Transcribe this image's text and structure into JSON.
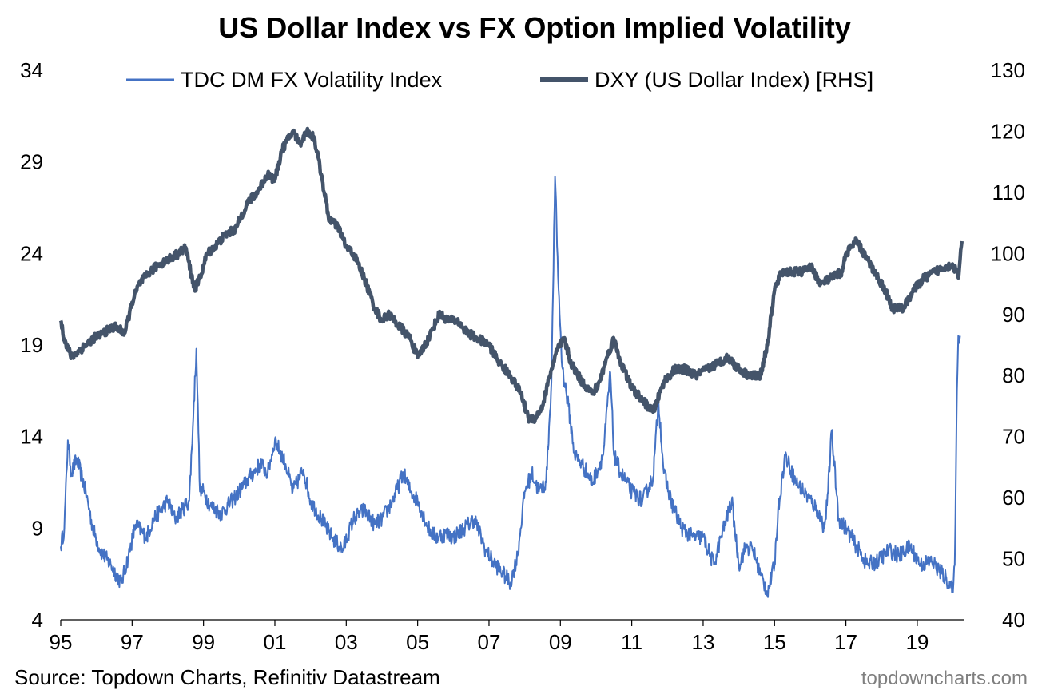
{
  "chart_data": {
    "type": "line",
    "title": "US Dollar Index vs FX Option Implied Volatility",
    "source": "Source: Topdown Charts, Refinitiv Datastream",
    "watermark": "topdowncharts.com",
    "legend_position": "top",
    "grid": false,
    "x_ticks": [
      "95",
      "97",
      "99",
      "01",
      "03",
      "05",
      "07",
      "09",
      "11",
      "13",
      "15",
      "17",
      "19"
    ],
    "x_tick_years": [
      1995,
      1997,
      1999,
      2001,
      2003,
      2005,
      2007,
      2009,
      2011,
      2013,
      2015,
      2017,
      2019
    ],
    "xlim": [
      1995.0,
      2020.3
    ],
    "left_axis": {
      "ticks": [
        "4",
        "9",
        "14",
        "19",
        "24",
        "29",
        "34"
      ],
      "ylim": [
        4,
        34
      ]
    },
    "right_axis": {
      "ticks": [
        "40",
        "50",
        "60",
        "70",
        "80",
        "90",
        "100",
        "110",
        "120",
        "130"
      ],
      "ylim": [
        40,
        130
      ]
    },
    "series": [
      {
        "name": "TDC DM FX Volatility Index",
        "axis": "left",
        "color": "#4472c4",
        "x": [
          1995.0,
          1995.1,
          1995.2,
          1995.3,
          1995.45,
          1995.7,
          1995.9,
          1996.1,
          1996.4,
          1996.7,
          1996.9,
          1997.1,
          1997.4,
          1997.6,
          1997.8,
          1998.0,
          1998.2,
          1998.4,
          1998.6,
          1998.7,
          1998.8,
          1998.9,
          1999.0,
          1999.2,
          1999.5,
          1999.8,
          2000.0,
          2000.3,
          2000.6,
          2000.8,
          2001.0,
          2001.3,
          2001.5,
          2001.8,
          2002.0,
          2002.3,
          2002.6,
          2002.9,
          2003.2,
          2003.5,
          2003.8,
          2004.0,
          2004.3,
          2004.6,
          2004.8,
          2005.0,
          2005.3,
          2005.5,
          2005.8,
          2006.0,
          2006.3,
          2006.6,
          2006.9,
          2007.1,
          2007.4,
          2007.6,
          2007.8,
          2008.0,
          2008.2,
          2008.4,
          2008.6,
          2008.75,
          2008.85,
          2008.95,
          2009.05,
          2009.2,
          2009.4,
          2009.6,
          2009.9,
          2010.2,
          2010.4,
          2010.5,
          2010.7,
          2011.0,
          2011.3,
          2011.6,
          2011.75,
          2011.9,
          2012.1,
          2012.4,
          2012.7,
          2013.0,
          2013.3,
          2013.5,
          2013.8,
          2014.0,
          2014.2,
          2014.4,
          2014.6,
          2014.8,
          2015.0,
          2015.1,
          2015.3,
          2015.6,
          2015.9,
          2016.2,
          2016.4,
          2016.5,
          2016.6,
          2016.8,
          2017.0,
          2017.3,
          2017.6,
          2017.9,
          2018.2,
          2018.5,
          2018.8,
          2019.1,
          2019.4,
          2019.7,
          2019.9,
          2020.0,
          2020.05,
          2020.1,
          2020.15,
          2020.2
        ],
        "values": [
          8.0,
          9.0,
          13.8,
          12.0,
          12.8,
          11.0,
          9.0,
          7.8,
          7.0,
          6.0,
          7.5,
          9.2,
          8.5,
          9.5,
          10.0,
          10.5,
          9.5,
          10.0,
          10.5,
          14.5,
          18.8,
          11.0,
          11.0,
          10.2,
          9.8,
          10.5,
          11.0,
          11.8,
          12.5,
          12.0,
          13.8,
          12.5,
          11.0,
          12.2,
          10.5,
          9.5,
          8.5,
          7.8,
          9.5,
          10.0,
          9.2,
          9.5,
          10.5,
          12.0,
          11.0,
          10.5,
          9.0,
          8.5,
          8.7,
          8.5,
          9.0,
          9.5,
          7.8,
          7.2,
          6.5,
          6.0,
          7.5,
          11.0,
          12.0,
          11.0,
          11.5,
          17.0,
          28.2,
          22.0,
          17.8,
          16.0,
          13.0,
          12.5,
          11.5,
          13.0,
          17.5,
          13.0,
          12.0,
          11.0,
          10.5,
          11.8,
          16.0,
          12.0,
          10.5,
          9.0,
          8.5,
          8.5,
          7.0,
          8.5,
          10.5,
          7.0,
          8.0,
          7.8,
          6.5,
          5.5,
          7.0,
          10.0,
          13.0,
          11.5,
          10.8,
          10.0,
          9.0,
          11.0,
          14.3,
          9.5,
          9.0,
          8.0,
          7.0,
          7.2,
          7.8,
          7.5,
          8.0,
          7.0,
          7.2,
          6.5,
          6.0,
          5.5,
          7.0,
          15.0,
          19.5,
          19.5
        ]
      },
      {
        "name": "DXY (US Dollar Index) [RHS]",
        "axis": "right",
        "color": "#44546a",
        "x": [
          1995.0,
          1995.1,
          1995.3,
          1995.5,
          1995.7,
          1995.9,
          1996.2,
          1996.5,
          1996.8,
          1997.0,
          1997.2,
          1997.5,
          1997.7,
          1998.0,
          1998.3,
          1998.5,
          1998.75,
          1998.9,
          1999.1,
          1999.3,
          1999.6,
          1999.9,
          2000.2,
          2000.5,
          2000.8,
          2001.0,
          2001.2,
          2001.5,
          2001.7,
          2001.9,
          2002.1,
          2002.3,
          2002.5,
          2002.8,
          2003.0,
          2003.2,
          2003.5,
          2003.8,
          2004.0,
          2004.2,
          2004.5,
          2004.8,
          2005.0,
          2005.3,
          2005.6,
          2005.9,
          2006.1,
          2006.4,
          2006.7,
          2007.0,
          2007.3,
          2007.6,
          2007.9,
          2008.1,
          2008.3,
          2008.5,
          2008.7,
          2008.9,
          2009.1,
          2009.3,
          2009.6,
          2009.9,
          2010.1,
          2010.3,
          2010.5,
          2010.7,
          2011.0,
          2011.3,
          2011.6,
          2011.9,
          2012.2,
          2012.5,
          2012.8,
          2013.1,
          2013.4,
          2013.7,
          2014.0,
          2014.3,
          2014.6,
          2014.8,
          2015.0,
          2015.2,
          2015.5,
          2015.8,
          2016.0,
          2016.3,
          2016.6,
          2016.9,
          2017.0,
          2017.3,
          2017.6,
          2017.9,
          2018.1,
          2018.3,
          2018.6,
          2018.9,
          2019.2,
          2019.5,
          2019.8,
          2020.0,
          2020.1,
          2020.15,
          2020.2,
          2020.25
        ],
        "values": [
          89,
          86,
          83,
          84,
          85,
          86,
          87,
          88,
          87,
          92,
          95,
          97,
          98,
          99,
          100,
          101,
          94,
          96,
          100,
          101,
          103,
          104,
          108,
          110,
          113,
          112,
          117,
          120,
          118,
          120,
          119,
          113,
          106,
          104,
          101,
          100,
          96,
          91,
          89,
          90,
          88,
          86,
          83,
          86,
          90,
          89,
          89,
          87,
          86,
          85,
          82,
          80,
          77,
          73,
          73,
          75,
          80,
          84,
          86,
          82,
          79,
          77,
          79,
          83,
          86,
          82,
          78,
          76,
          74,
          79,
          81,
          81,
          80,
          81,
          82,
          83,
          81,
          80,
          80,
          85,
          94,
          97,
          97,
          97,
          98,
          95,
          96,
          97,
          100,
          102,
          99,
          96,
          94,
          91,
          91,
          94,
          96,
          97,
          98,
          98,
          97,
          96,
          99,
          102
        ]
      }
    ]
  }
}
